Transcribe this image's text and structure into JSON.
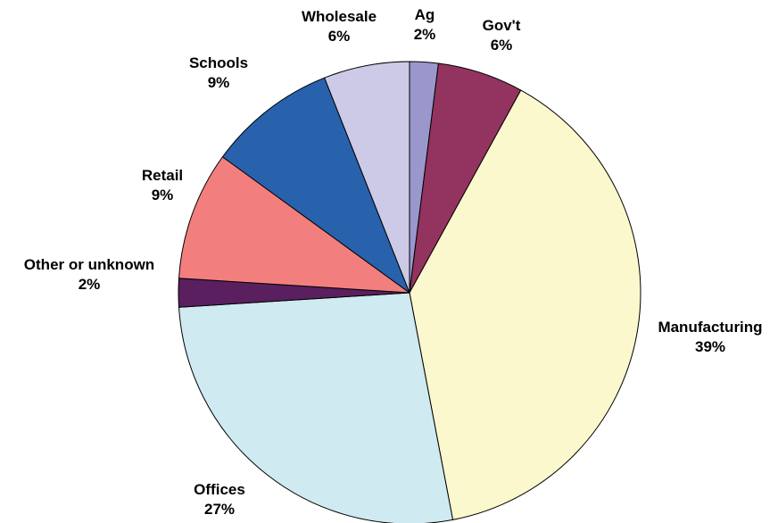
{
  "chart_data": {
    "type": "pie",
    "start_angle_deg": 0,
    "direction": "clockwise",
    "slices": [
      {
        "label": "Ag",
        "pct_text": "2%",
        "value": 2,
        "color": "#9a97cc"
      },
      {
        "label": "Gov't",
        "pct_text": "6%",
        "value": 6,
        "color": "#933360"
      },
      {
        "label": "Manufacturing",
        "pct_text": "39%",
        "value": 39,
        "color": "#fbf8cd"
      },
      {
        "label": "Offices",
        "pct_text": "27%",
        "value": 27,
        "color": "#cfeaf1"
      },
      {
        "label": "Other or unknown",
        "pct_text": "2%",
        "value": 2,
        "color": "#5a1f5e"
      },
      {
        "label": "Retail",
        "pct_text": "9%",
        "value": 9,
        "color": "#f27f7d"
      },
      {
        "label": "Schools",
        "pct_text": "9%",
        "value": 9,
        "color": "#2862ad"
      },
      {
        "label": "Wholesale",
        "pct_text": "6%",
        "value": 6,
        "color": "#cccae6"
      }
    ]
  }
}
